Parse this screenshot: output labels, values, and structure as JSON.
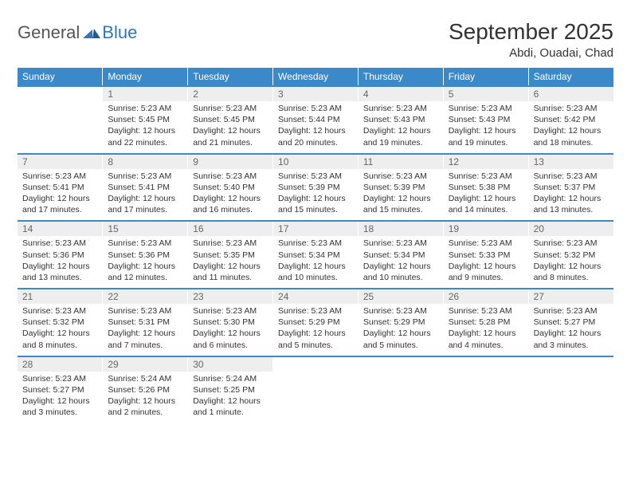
{
  "logo": {
    "gen": "General",
    "blue": "Blue"
  },
  "title": "September 2025",
  "subtitle": "Abdi, Ouadai, Chad",
  "colors": {
    "header_bg": "#3b89c8",
    "header_text": "#ffffff",
    "daynum_bg": "#eeeeee",
    "daynum_text": "#666666",
    "body_text": "#333333",
    "logo_gray": "#555555",
    "logo_blue": "#2f77b9",
    "page_bg": "#ffffff"
  },
  "weekdays": [
    "Sunday",
    "Monday",
    "Tuesday",
    "Wednesday",
    "Thursday",
    "Friday",
    "Saturday"
  ],
  "weeks": [
    {
      "nums": [
        "",
        "1",
        "2",
        "3",
        "4",
        "5",
        "6"
      ],
      "cells": [
        null,
        {
          "sunrise": "Sunrise: 5:23 AM",
          "sunset": "Sunset: 5:45 PM",
          "daylight": "Daylight: 12 hours and 22 minutes."
        },
        {
          "sunrise": "Sunrise: 5:23 AM",
          "sunset": "Sunset: 5:45 PM",
          "daylight": "Daylight: 12 hours and 21 minutes."
        },
        {
          "sunrise": "Sunrise: 5:23 AM",
          "sunset": "Sunset: 5:44 PM",
          "daylight": "Daylight: 12 hours and 20 minutes."
        },
        {
          "sunrise": "Sunrise: 5:23 AM",
          "sunset": "Sunset: 5:43 PM",
          "daylight": "Daylight: 12 hours and 19 minutes."
        },
        {
          "sunrise": "Sunrise: 5:23 AM",
          "sunset": "Sunset: 5:43 PM",
          "daylight": "Daylight: 12 hours and 19 minutes."
        },
        {
          "sunrise": "Sunrise: 5:23 AM",
          "sunset": "Sunset: 5:42 PM",
          "daylight": "Daylight: 12 hours and 18 minutes."
        }
      ]
    },
    {
      "nums": [
        "7",
        "8",
        "9",
        "10",
        "11",
        "12",
        "13"
      ],
      "cells": [
        {
          "sunrise": "Sunrise: 5:23 AM",
          "sunset": "Sunset: 5:41 PM",
          "daylight": "Daylight: 12 hours and 17 minutes."
        },
        {
          "sunrise": "Sunrise: 5:23 AM",
          "sunset": "Sunset: 5:41 PM",
          "daylight": "Daylight: 12 hours and 17 minutes."
        },
        {
          "sunrise": "Sunrise: 5:23 AM",
          "sunset": "Sunset: 5:40 PM",
          "daylight": "Daylight: 12 hours and 16 minutes."
        },
        {
          "sunrise": "Sunrise: 5:23 AM",
          "sunset": "Sunset: 5:39 PM",
          "daylight": "Daylight: 12 hours and 15 minutes."
        },
        {
          "sunrise": "Sunrise: 5:23 AM",
          "sunset": "Sunset: 5:39 PM",
          "daylight": "Daylight: 12 hours and 15 minutes."
        },
        {
          "sunrise": "Sunrise: 5:23 AM",
          "sunset": "Sunset: 5:38 PM",
          "daylight": "Daylight: 12 hours and 14 minutes."
        },
        {
          "sunrise": "Sunrise: 5:23 AM",
          "sunset": "Sunset: 5:37 PM",
          "daylight": "Daylight: 12 hours and 13 minutes."
        }
      ]
    },
    {
      "nums": [
        "14",
        "15",
        "16",
        "17",
        "18",
        "19",
        "20"
      ],
      "cells": [
        {
          "sunrise": "Sunrise: 5:23 AM",
          "sunset": "Sunset: 5:36 PM",
          "daylight": "Daylight: 12 hours and 13 minutes."
        },
        {
          "sunrise": "Sunrise: 5:23 AM",
          "sunset": "Sunset: 5:36 PM",
          "daylight": "Daylight: 12 hours and 12 minutes."
        },
        {
          "sunrise": "Sunrise: 5:23 AM",
          "sunset": "Sunset: 5:35 PM",
          "daylight": "Daylight: 12 hours and 11 minutes."
        },
        {
          "sunrise": "Sunrise: 5:23 AM",
          "sunset": "Sunset: 5:34 PM",
          "daylight": "Daylight: 12 hours and 10 minutes."
        },
        {
          "sunrise": "Sunrise: 5:23 AM",
          "sunset": "Sunset: 5:34 PM",
          "daylight": "Daylight: 12 hours and 10 minutes."
        },
        {
          "sunrise": "Sunrise: 5:23 AM",
          "sunset": "Sunset: 5:33 PM",
          "daylight": "Daylight: 12 hours and 9 minutes."
        },
        {
          "sunrise": "Sunrise: 5:23 AM",
          "sunset": "Sunset: 5:32 PM",
          "daylight": "Daylight: 12 hours and 8 minutes."
        }
      ]
    },
    {
      "nums": [
        "21",
        "22",
        "23",
        "24",
        "25",
        "26",
        "27"
      ],
      "cells": [
        {
          "sunrise": "Sunrise: 5:23 AM",
          "sunset": "Sunset: 5:32 PM",
          "daylight": "Daylight: 12 hours and 8 minutes."
        },
        {
          "sunrise": "Sunrise: 5:23 AM",
          "sunset": "Sunset: 5:31 PM",
          "daylight": "Daylight: 12 hours and 7 minutes."
        },
        {
          "sunrise": "Sunrise: 5:23 AM",
          "sunset": "Sunset: 5:30 PM",
          "daylight": "Daylight: 12 hours and 6 minutes."
        },
        {
          "sunrise": "Sunrise: 5:23 AM",
          "sunset": "Sunset: 5:29 PM",
          "daylight": "Daylight: 12 hours and 5 minutes."
        },
        {
          "sunrise": "Sunrise: 5:23 AM",
          "sunset": "Sunset: 5:29 PM",
          "daylight": "Daylight: 12 hours and 5 minutes."
        },
        {
          "sunrise": "Sunrise: 5:23 AM",
          "sunset": "Sunset: 5:28 PM",
          "daylight": "Daylight: 12 hours and 4 minutes."
        },
        {
          "sunrise": "Sunrise: 5:23 AM",
          "sunset": "Sunset: 5:27 PM",
          "daylight": "Daylight: 12 hours and 3 minutes."
        }
      ]
    },
    {
      "nums": [
        "28",
        "29",
        "30",
        "",
        "",
        "",
        ""
      ],
      "cells": [
        {
          "sunrise": "Sunrise: 5:23 AM",
          "sunset": "Sunset: 5:27 PM",
          "daylight": "Daylight: 12 hours and 3 minutes."
        },
        {
          "sunrise": "Sunrise: 5:24 AM",
          "sunset": "Sunset: 5:26 PM",
          "daylight": "Daylight: 12 hours and 2 minutes."
        },
        {
          "sunrise": "Sunrise: 5:24 AM",
          "sunset": "Sunset: 5:25 PM",
          "daylight": "Daylight: 12 hours and 1 minute."
        },
        null,
        null,
        null,
        null
      ]
    }
  ]
}
